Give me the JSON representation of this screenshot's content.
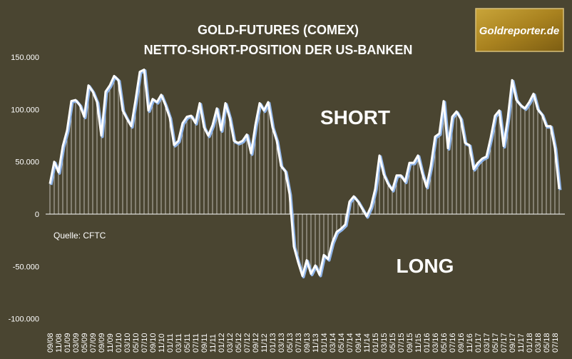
{
  "chart_data": {
    "type": "line",
    "title": "GOLD-FUTURES (COMEX)",
    "subtitle": "NETTO-SHORT-POSITION DER US-BANKEN",
    "source": "Quelle: CFTC",
    "annotations": [
      "SHORT",
      "LONG"
    ],
    "logo": "Goldreporter.de",
    "color": "#ffffff",
    "shadow_color": "#8fb4e8",
    "ylim": [
      -100000,
      150000
    ],
    "yticks": [
      {
        "value": -100000,
        "label": "-100.000"
      },
      {
        "value": -50000,
        "label": "-50.000"
      },
      0,
      {
        "value": 50000,
        "label": "50.000"
      },
      {
        "value": 100000,
        "label": "100.000"
      },
      {
        "value": 150000,
        "label": "150.000"
      }
    ],
    "categories": [
      "09/08",
      null,
      "11/08",
      null,
      "01/09",
      null,
      "03/09",
      null,
      "05/09",
      null,
      "07/09",
      null,
      "09/09",
      null,
      "11/09",
      null,
      "01/10",
      null,
      "03/10",
      null,
      "05/10",
      null,
      "07/10",
      null,
      "09/10",
      null,
      "11/10",
      null,
      "01/11",
      null,
      "03/11",
      null,
      "05/11",
      null,
      "07/11",
      null,
      "09/11",
      null,
      "11/11",
      null,
      "01/12",
      null,
      "03/12",
      null,
      "05/12",
      null,
      "07/12",
      null,
      "09/12",
      null,
      "11/12",
      null,
      "01/13",
      null,
      "03/13",
      null,
      "05/13",
      null,
      "07/13",
      null,
      "09/13",
      null,
      "11/13",
      null,
      "01/14",
      null,
      "03/14",
      null,
      "05/14",
      null,
      "07/14",
      null,
      "09/14",
      null,
      "11/14",
      null,
      "01/15",
      null,
      "03/15",
      null,
      "05/15",
      null,
      "07/15",
      null,
      "09/15",
      null,
      "11/15",
      null,
      "01/16",
      null,
      "03/16",
      null,
      "05/16",
      null,
      "07/16",
      null,
      "09/16",
      null,
      "11/16",
      null,
      "01/17",
      null,
      "03/17",
      null,
      "05/17",
      null,
      "07/17",
      null,
      "09/17",
      null,
      "11/17",
      null,
      "01/18",
      null,
      "03/18",
      null,
      "05/18",
      null,
      "07/18",
      null
    ],
    "values": [
      29000,
      50000,
      40000,
      65000,
      80000,
      108000,
      109000,
      104000,
      93000,
      123000,
      117000,
      107000,
      75000,
      117000,
      123000,
      132000,
      128000,
      99000,
      91000,
      84000,
      109000,
      136000,
      138000,
      99000,
      110000,
      107000,
      114000,
      104000,
      92000,
      66000,
      70000,
      87000,
      93000,
      94000,
      87000,
      106000,
      83000,
      75000,
      85000,
      101000,
      80000,
      106000,
      92000,
      70000,
      68000,
      70000,
      76000,
      58000,
      85000,
      106000,
      99000,
      107000,
      83000,
      70000,
      46000,
      41000,
      19000,
      -31000,
      -46000,
      -59000,
      -44000,
      -57000,
      -49000,
      -58000,
      -39000,
      -43000,
      -27000,
      -17000,
      -14000,
      -10000,
      12000,
      17000,
      12000,
      5000,
      -2000,
      7000,
      24000,
      56000,
      38000,
      29000,
      23000,
      37000,
      37000,
      31000,
      49000,
      49000,
      56000,
      39000,
      26000,
      46000,
      74000,
      77000,
      108000,
      63000,
      93000,
      98000,
      91000,
      68000,
      66000,
      43000,
      49000,
      53000,
      55000,
      73000,
      94000,
      99000,
      65000,
      92000,
      128000,
      109000,
      104000,
      101000,
      107000,
      115000,
      100000,
      95000,
      84000,
      84000,
      63000,
      24000
    ]
  }
}
